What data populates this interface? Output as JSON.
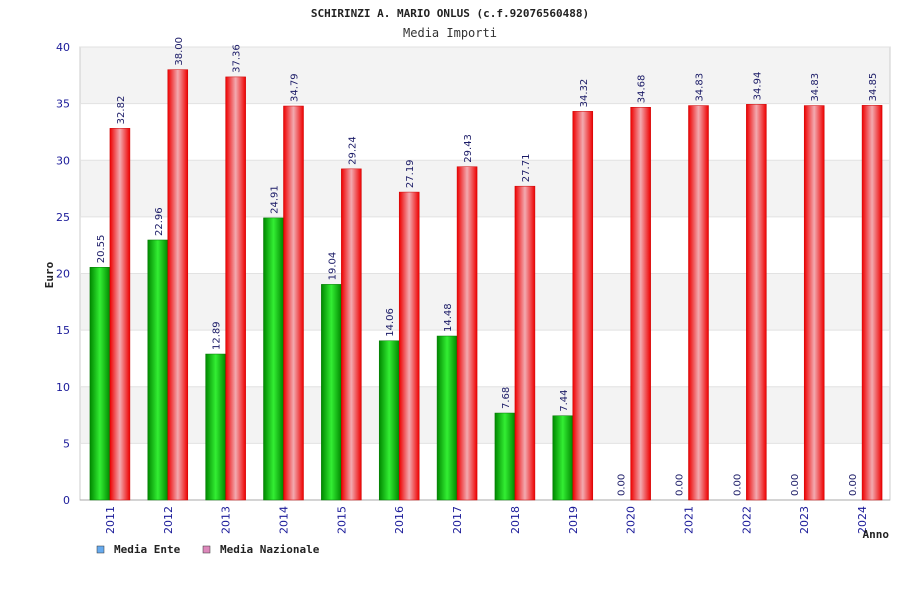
{
  "chart_data": {
    "type": "bar",
    "title": "SCHIRINZI A. MARIO ONLUS (c.f.92076560488)",
    "subtitle": "Media Importi",
    "xlabel": "Anno",
    "ylabel": "Euro",
    "ylim": [
      0,
      40
    ],
    "yticks": [
      0,
      5,
      10,
      15,
      20,
      25,
      30,
      35,
      40
    ],
    "grid": true,
    "legend_position": "bottom-left",
    "categories": [
      "2011",
      "2012",
      "2013",
      "2014",
      "2015",
      "2016",
      "2017",
      "2018",
      "2019",
      "2020",
      "2021",
      "2022",
      "2023",
      "2024"
    ],
    "series": [
      {
        "name": "Media Ente",
        "color": "#00cc00",
        "legend_color": "#66aaee",
        "values": [
          20.55,
          22.96,
          12.89,
          24.91,
          19.04,
          14.06,
          14.48,
          7.68,
          7.44,
          0.0,
          0.0,
          0.0,
          0.0,
          0.0
        ],
        "labels": [
          "20.55",
          "22.96",
          "12.89",
          "24.91",
          "19.04",
          "14.06",
          "14.48",
          "7.68",
          "7.44",
          "0.00",
          "0.00",
          "0.00",
          "0.00",
          "0.00"
        ]
      },
      {
        "name": "Media Nazionale",
        "color": "#ee1111",
        "legend_color": "#dd88bb",
        "values": [
          32.82,
          38.0,
          37.36,
          34.79,
          29.24,
          27.19,
          29.43,
          27.71,
          34.32,
          34.68,
          34.83,
          34.94,
          34.83,
          34.85
        ],
        "labels": [
          "32.82",
          "38.00",
          "37.36",
          "34.79",
          "29.24",
          "27.19",
          "29.43",
          "27.71",
          "34.32",
          "34.68",
          "34.83",
          "34.94",
          "34.83",
          "34.85"
        ]
      }
    ]
  }
}
